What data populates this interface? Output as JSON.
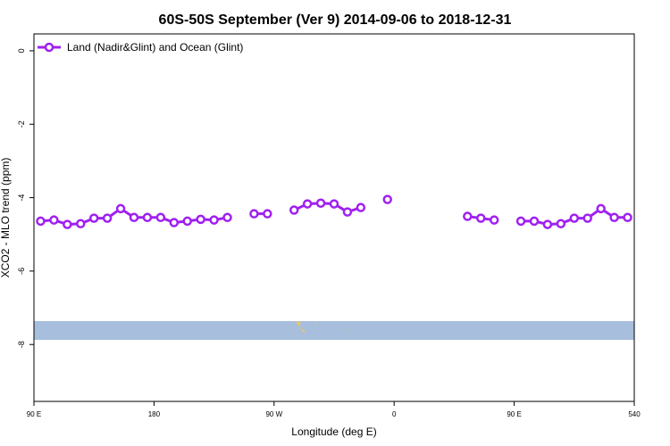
{
  "chart_data": {
    "type": "line",
    "title": "60S-50S September (Ver 9)   2014-09-06 to 2018-12-31",
    "xlabel": "Longitude (deg E)",
    "ylabel": "XCO2 - MLO trend (ppm)",
    "x": [
      95,
      105,
      115,
      125,
      135,
      145,
      155,
      165,
      175,
      185,
      195,
      205,
      215,
      225,
      235,
      245,
      255,
      265,
      275,
      285,
      295,
      305,
      315,
      325,
      335,
      345,
      355,
      405,
      415,
      425,
      435,
      445,
      455,
      465,
      475,
      485,
      495,
      505,
      515,
      525,
      535
    ],
    "series": [
      {
        "name": "Land (Nadir&Glint) and Ocean (Glint)",
        "color": "#a020f0",
        "values": [
          -4.64,
          -4.61,
          -4.73,
          -4.71,
          -4.56,
          -4.56,
          -4.3,
          -4.54,
          -4.54,
          -4.54,
          -4.68,
          -4.64,
          -4.59,
          -4.61,
          -4.54,
          null,
          -4.44,
          -4.44,
          null,
          -4.34,
          -4.17,
          -4.15,
          -4.17,
          -4.39,
          -4.27,
          null,
          -4.05,
          null,
          -4.51,
          -4.56,
          -4.61,
          null,
          -4.64,
          -4.64,
          -4.73,
          -4.71,
          -4.56,
          -4.56,
          -4.3,
          -4.54,
          -4.54
        ]
      }
    ],
    "xlim": [
      90,
      540
    ],
    "xticks": [
      {
        "value": 90,
        "label": "90 E"
      },
      180,
      {
        "value": 270,
        "label": "90 W"
      },
      {
        "value": 360,
        "label": "0"
      },
      {
        "value": 450,
        "label": "90 E"
      },
      540
    ],
    "ylim": [
      -9.55,
      0.46
    ],
    "yticks": [
      0,
      -2,
      -4,
      -6,
      -8
    ],
    "legend": "top-left"
  }
}
